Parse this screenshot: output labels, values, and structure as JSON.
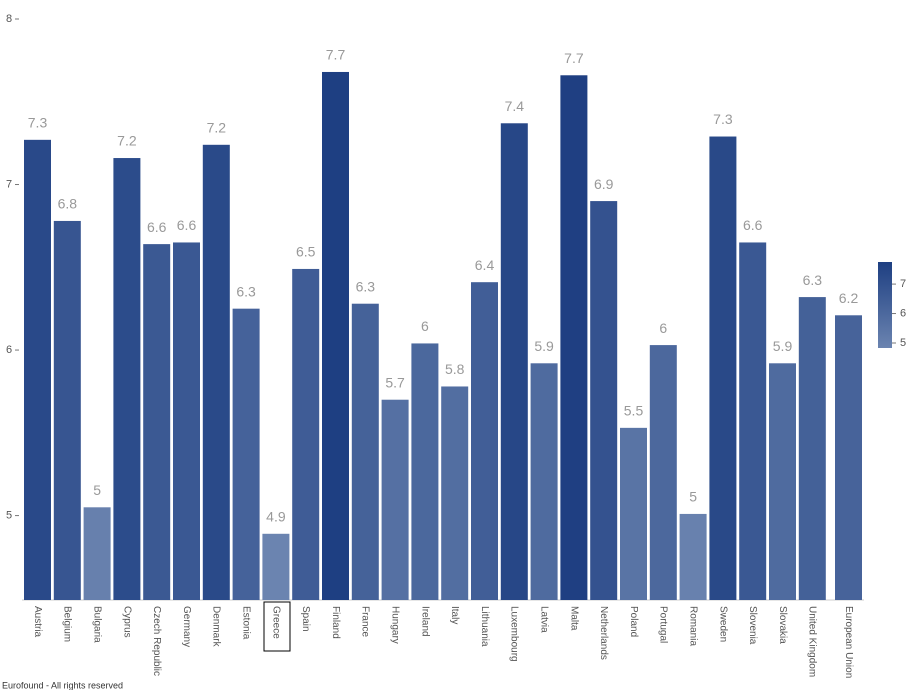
{
  "chart_data": {
    "type": "bar",
    "categories": [
      "Austria",
      "Belgium",
      "Bulgaria",
      "Cyprus",
      "Czech Republic",
      "Germany",
      "Denmark",
      "Estonia",
      "Greece",
      "Spain",
      "Finland",
      "France",
      "Hungary",
      "Ireland",
      "Italy",
      "Lithuania",
      "Luxembourg",
      "Latvia",
      "Malta",
      "Netherlands",
      "Poland",
      "Portugal",
      "Romania",
      "Sweden",
      "Slovenia",
      "Slovakia",
      "United Kingdom",
      "European Union"
    ],
    "values": [
      7.27,
      6.78,
      5.05,
      7.16,
      6.64,
      6.65,
      7.24,
      6.25,
      4.89,
      6.49,
      7.68,
      6.28,
      5.7,
      6.04,
      5.78,
      6.41,
      7.37,
      5.92,
      7.66,
      6.9,
      5.53,
      6.03,
      5.01,
      7.29,
      6.65,
      5.92,
      6.32,
      6.21
    ],
    "value_labels": [
      "7.3",
      "6.8",
      "5",
      "7.2",
      "6.6",
      "6.6",
      "7.2",
      "6.3",
      "4.9",
      "6.5",
      "7.7",
      "6.3",
      "5.7",
      "6",
      "5.8",
      "6.4",
      "7.4",
      "5.9",
      "7.7",
      "6.9",
      "5.5",
      "6",
      "5",
      "7.3",
      "6.6",
      "5.9",
      "6.3",
      "6.2"
    ],
    "ylim": [
      4.49,
      8.0
    ],
    "yticks": [
      5,
      6,
      7,
      8
    ],
    "colors": [
      "#6b84b0",
      "#1e3f82"
    ],
    "colorbar_lim": [
      4.83,
      7.75
    ],
    "colorbar_ticks": [
      5,
      6,
      7
    ],
    "footer": "Eurofound - All rights reserved"
  }
}
